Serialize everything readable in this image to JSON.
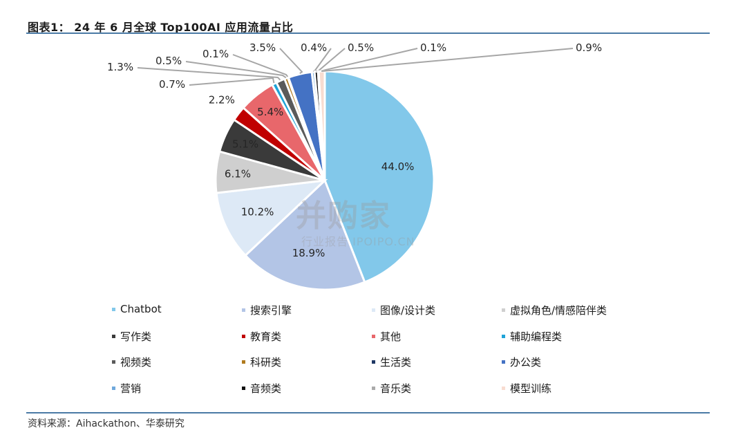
{
  "title": "图表1： 24 年 6 月全球 Top100AI 应用流量占比",
  "source": "资料来源：Aihackathon、华泰研究",
  "watermark": {
    "main": "并购家",
    "sub": "行业报告 IPOIPO.CN"
  },
  "chart_data": {
    "type": "pie",
    "title": "图表1： 24 年 6 月全球 Top100AI 应用流量占比",
    "legend_position": "bottom",
    "slices": [
      {
        "name": "Chatbot",
        "value": 44.0,
        "label": "44.0%",
        "color": "#82c8ea"
      },
      {
        "name": "搜索引擎",
        "value": 18.9,
        "label": "18.9%",
        "color": "#b3c5e6"
      },
      {
        "name": "图像/设计类",
        "value": 10.2,
        "label": "10.2%",
        "color": "#dde9f6"
      },
      {
        "name": "虚拟角色/情感陪伴类",
        "value": 6.1,
        "label": "6.1%",
        "color": "#cfcfcf"
      },
      {
        "name": "写作类",
        "value": 5.1,
        "label": "5.1%",
        "color": "#3a3a3a"
      },
      {
        "name": "教育类",
        "value": 2.2,
        "label": "2.2%",
        "color": "#c00000"
      },
      {
        "name": "其他",
        "value": 5.4,
        "label": "5.4%",
        "color": "#e8676b"
      },
      {
        "name": "辅助编程类",
        "value": 0.7,
        "label": "0.7%",
        "color": "#1fa3d8"
      },
      {
        "name": "视频类",
        "value": 1.3,
        "label": "1.3%",
        "color": "#5a5a5a"
      },
      {
        "name": "科研类",
        "value": 0.5,
        "label": "0.5%",
        "color": "#b07a1e"
      },
      {
        "name": "生活类",
        "value": 0.1,
        "label": "0.1%",
        "color": "#1f3864"
      },
      {
        "name": "办公类",
        "value": 3.5,
        "label": "3.5%",
        "color": "#4472c4"
      },
      {
        "name": "营销",
        "value": 0.4,
        "label": "0.4%",
        "color": "#6fa8dc"
      },
      {
        "name": "音频类",
        "value": 0.5,
        "label": "0.5%",
        "color": "#111111"
      },
      {
        "name": "音乐类",
        "value": 0.1,
        "label": "0.1%",
        "color": "#aaaaaa"
      },
      {
        "name": "模型训练",
        "value": 0.9,
        "label": "0.9%",
        "color": "#f8dcd0"
      }
    ]
  }
}
